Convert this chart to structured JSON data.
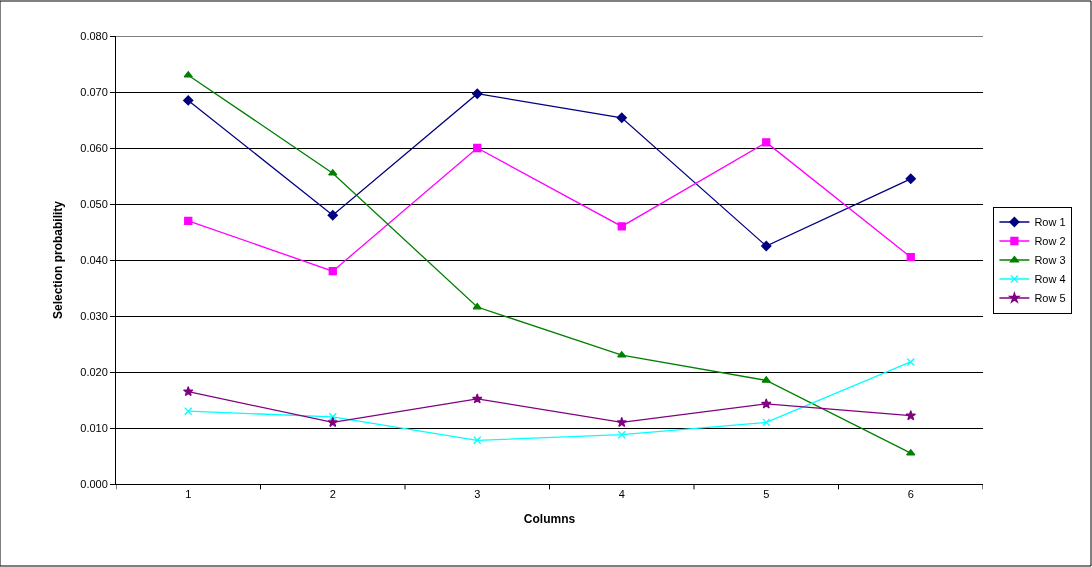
{
  "chart_data": {
    "type": "line",
    "xlabel": "Columns",
    "ylabel": "Selection probability",
    "categories": [
      "1",
      "2",
      "3",
      "4",
      "5",
      "6"
    ],
    "series": [
      {
        "name": "Row 1",
        "color": "#000080",
        "marker": "diamond",
        "values": [
          0.0685,
          0.048,
          0.0697,
          0.0654,
          0.0425,
          0.0545
        ]
      },
      {
        "name": "Row 2",
        "color": "#ff00ff",
        "marker": "square",
        "values": [
          0.047,
          0.038,
          0.06,
          0.046,
          0.061,
          0.0405
        ]
      },
      {
        "name": "Row 3",
        "color": "#008000",
        "marker": "triangle",
        "values": [
          0.073,
          0.0555,
          0.0316,
          0.023,
          0.0185,
          0.0055
        ]
      },
      {
        "name": "Row 4",
        "color": "#00ffff",
        "marker": "cross",
        "values": [
          0.013,
          0.012,
          0.0078,
          0.0088,
          0.011,
          0.0218
        ]
      },
      {
        "name": "Row 5",
        "color": "#800080",
        "marker": "star",
        "values": [
          0.0165,
          0.011,
          0.0152,
          0.011,
          0.0143,
          0.0122
        ]
      }
    ],
    "ylim": [
      0,
      0.08
    ],
    "yticks": [
      {
        "value": 0,
        "label": "0.000"
      },
      {
        "value": 0.01,
        "label": "0.010"
      },
      {
        "value": 0.02,
        "label": "0.020"
      },
      {
        "value": 0.03,
        "label": "0.030"
      },
      {
        "value": 0.04,
        "label": "0.040"
      },
      {
        "value": 0.05,
        "label": "0.050"
      },
      {
        "value": 0.06,
        "label": "0.060"
      },
      {
        "value": 0.07,
        "label": "0.070"
      },
      {
        "value": 0.08,
        "label": "0.080"
      }
    ],
    "grid": "y",
    "legend": "right",
    "line_style": "solid"
  }
}
